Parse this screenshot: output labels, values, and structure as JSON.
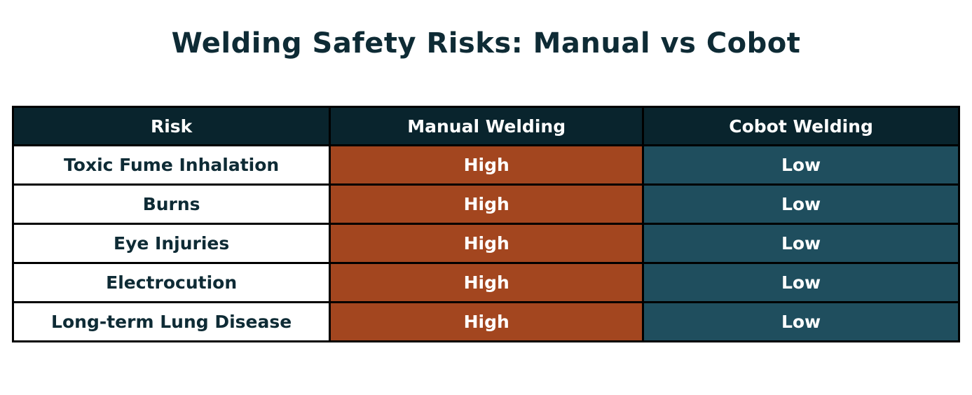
{
  "title": "Welding Safety Risks: Manual vs Cobot",
  "chart_data": {
    "type": "table",
    "title": "Welding Safety Risks: Manual vs Cobot",
    "columns": [
      "Risk",
      "Manual Welding",
      "Cobot Welding"
    ],
    "rows": [
      [
        "Toxic Fume Inhalation",
        "High",
        "Low"
      ],
      [
        "Burns",
        "High",
        "Low"
      ],
      [
        "Eye Injuries",
        "High",
        "Low"
      ],
      [
        "Electrocution",
        "High",
        "Low"
      ],
      [
        "Long-term Lung Disease",
        "High",
        "Low"
      ]
    ],
    "cell_color_legend": {
      "High": "rust-orange",
      "Low": "dark-teal"
    }
  },
  "colors": {
    "title_text": "#0e2b35",
    "header_bg": "#09242d",
    "header_text": "#ffffff",
    "risk_cell_bg": "#ffffff",
    "risk_cell_text": "#0e2b35",
    "high_bg": "#a3461f",
    "low_bg": "#1f4e5e",
    "value_text": "#ffffff",
    "border": "#000000",
    "page_bg": "#ffffff"
  }
}
